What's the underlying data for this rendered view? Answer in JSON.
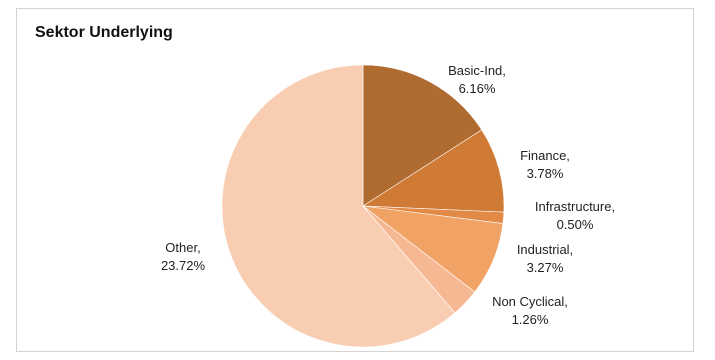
{
  "chart_data": {
    "type": "pie",
    "title": "Sektor Underlying",
    "slices": [
      {
        "label": "Basic-Ind,",
        "value_text": "6.16%",
        "value": 6.16,
        "color": "#b06b30"
      },
      {
        "label": "Finance,",
        "value_text": "3.78%",
        "value": 3.78,
        "color": "#cf7b36"
      },
      {
        "label": "Infrastructure,",
        "value_text": "0.50%",
        "value": 0.5,
        "color": "#e28a45"
      },
      {
        "label": "Industrial,",
        "value_text": "3.27%",
        "value": 3.27,
        "color": "#f1a265"
      },
      {
        "label": "Non Cyclical,",
        "value_text": "1.26%",
        "value": 1.26,
        "color": "#f6b892"
      },
      {
        "label": "Other,",
        "value_text": "23.72%",
        "value": 23.72,
        "color": "#f8cdb2"
      }
    ],
    "start_position": "12 o'clock, clockwise",
    "legend": "none, labels outside slices"
  }
}
